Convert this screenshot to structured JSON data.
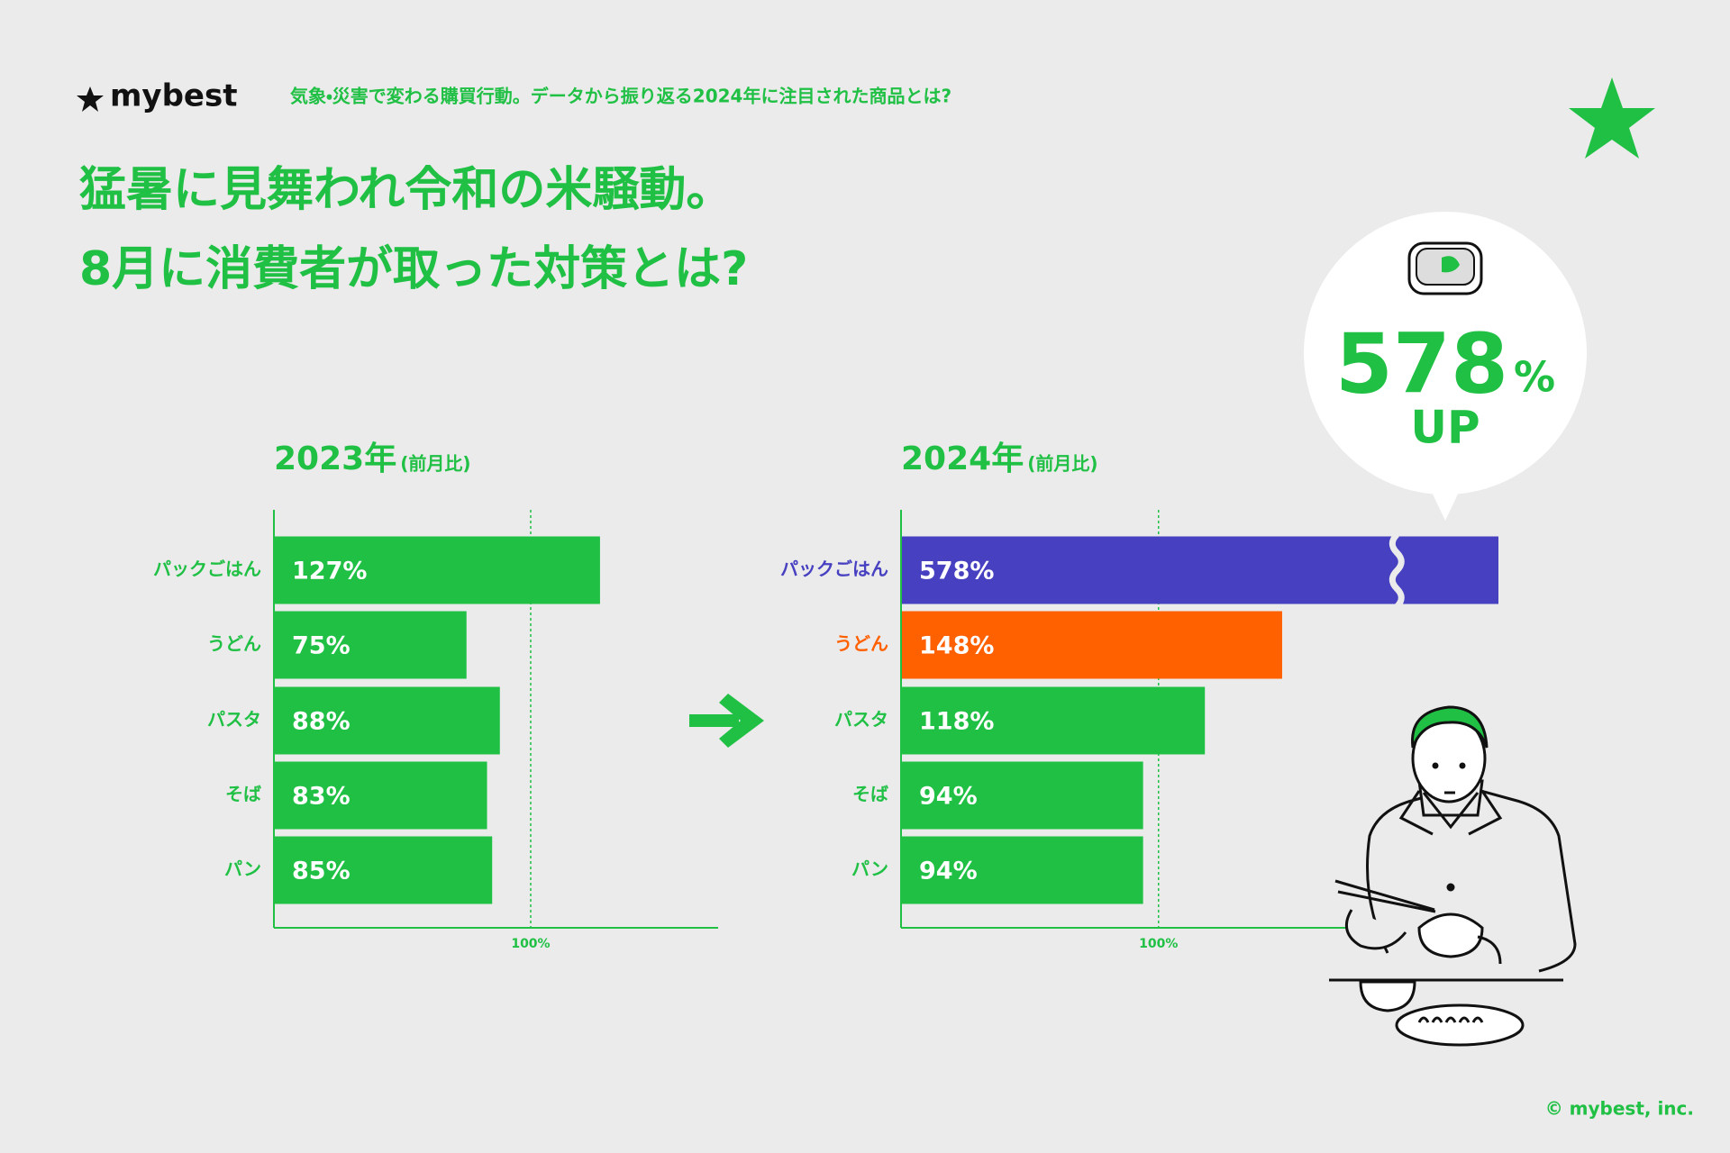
{
  "header": {
    "logo": "mybest",
    "subtitle": "気象・災害で変わる購買行動。データから振り返る2024年に注目された商品とは?"
  },
  "title_lines": [
    "猛暑に見舞われ令和の米騒動。",
    "8月に消費者が取った対策とは?"
  ],
  "callout": {
    "number": "578",
    "unit": "%",
    "sub": "UP"
  },
  "copyright": "© mybest, inc.",
  "chart_data": [
    {
      "type": "bar",
      "orientation": "horizontal",
      "title": "2023年",
      "subtitle": "(前月比)",
      "categories": [
        "パックごはん",
        "うどん",
        "パスタ",
        "そば",
        "パン"
      ],
      "values": [
        127,
        75,
        88,
        83,
        85
      ],
      "value_labels": [
        "127%",
        "75%",
        "88%",
        "83%",
        "85%"
      ],
      "colors": [
        "#20c045",
        "#20c045",
        "#20c045",
        "#20c045",
        "#20c045"
      ],
      "xlim": [
        0,
        173
      ],
      "xticks": [
        {
          "value": 100,
          "label": "100%"
        }
      ]
    },
    {
      "type": "bar",
      "orientation": "horizontal",
      "title": "2024年",
      "subtitle": "(前月比)",
      "categories": [
        "パックごはん",
        "うどん",
        "パスタ",
        "そば",
        "パン"
      ],
      "values": [
        578,
        148,
        118,
        94,
        94
      ],
      "value_labels": [
        "578%",
        "148%",
        "118%",
        "94%",
        "94%"
      ],
      "colors": [
        "#4741c1",
        "#ff6000",
        "#20c045",
        "#20c045",
        "#20c045"
      ],
      "xlim": [
        0,
        232
      ],
      "xticks": [
        {
          "value": 100,
          "label": "100%"
        }
      ]
    }
  ]
}
